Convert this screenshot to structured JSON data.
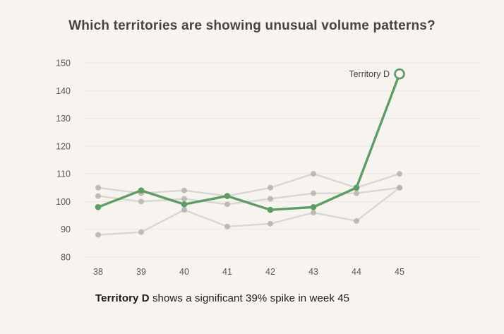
{
  "page": {
    "background": "#f7f4ef",
    "title_color": "#45443f",
    "tick_color": "#57564f",
    "grid_color": "#e9e6df",
    "caption_color": "#1c1c1a"
  },
  "header": {
    "title": "Which territories are showing unusual volume patterns?"
  },
  "caption": {
    "bold": "Territory D",
    "rest": " shows a significant 39% spike in week 45"
  },
  "chart_data": {
    "type": "line",
    "title": "Which territories are showing unusual volume patterns?",
    "x_categories": [
      "38",
      "39",
      "40",
      "41",
      "42",
      "43",
      "44",
      "45"
    ],
    "xlabel": "",
    "ylabel": "",
    "ylim": [
      80,
      150
    ],
    "yticks": [
      80,
      90,
      100,
      110,
      120,
      130,
      140,
      150
    ],
    "grid": "horizontal",
    "legend_position": "annotation-on-line",
    "series": [
      {
        "name": "unlabeled-gray-1",
        "color": "#d3d1cb",
        "marker_color": "#b5b3ae",
        "emphasis": false,
        "values": [
          105,
          103,
          104,
          102,
          105,
          110,
          105,
          110
        ]
      },
      {
        "name": "unlabeled-gray-2",
        "color": "#d3d1cb",
        "marker_color": "#b5b3ae",
        "emphasis": false,
        "values": [
          102,
          100,
          101,
          99,
          101,
          103,
          103,
          105
        ]
      },
      {
        "name": "unlabeled-gray-3",
        "color": "#d3d1cb",
        "marker_color": "#b5b3ae",
        "emphasis": false,
        "values": [
          88,
          89,
          97,
          91,
          92,
          96,
          93,
          105
        ]
      },
      {
        "name": "Territory D",
        "color": "#5f9b64",
        "marker_color": "#5f9b64",
        "emphasis": true,
        "endpoint_marker": "open-circle",
        "values": [
          98,
          104,
          99,
          102,
          97,
          98,
          105,
          146
        ]
      }
    ],
    "annotation": {
      "text": "Territory D",
      "at_x": "45",
      "at_y": 146,
      "color": "#45443f"
    }
  }
}
